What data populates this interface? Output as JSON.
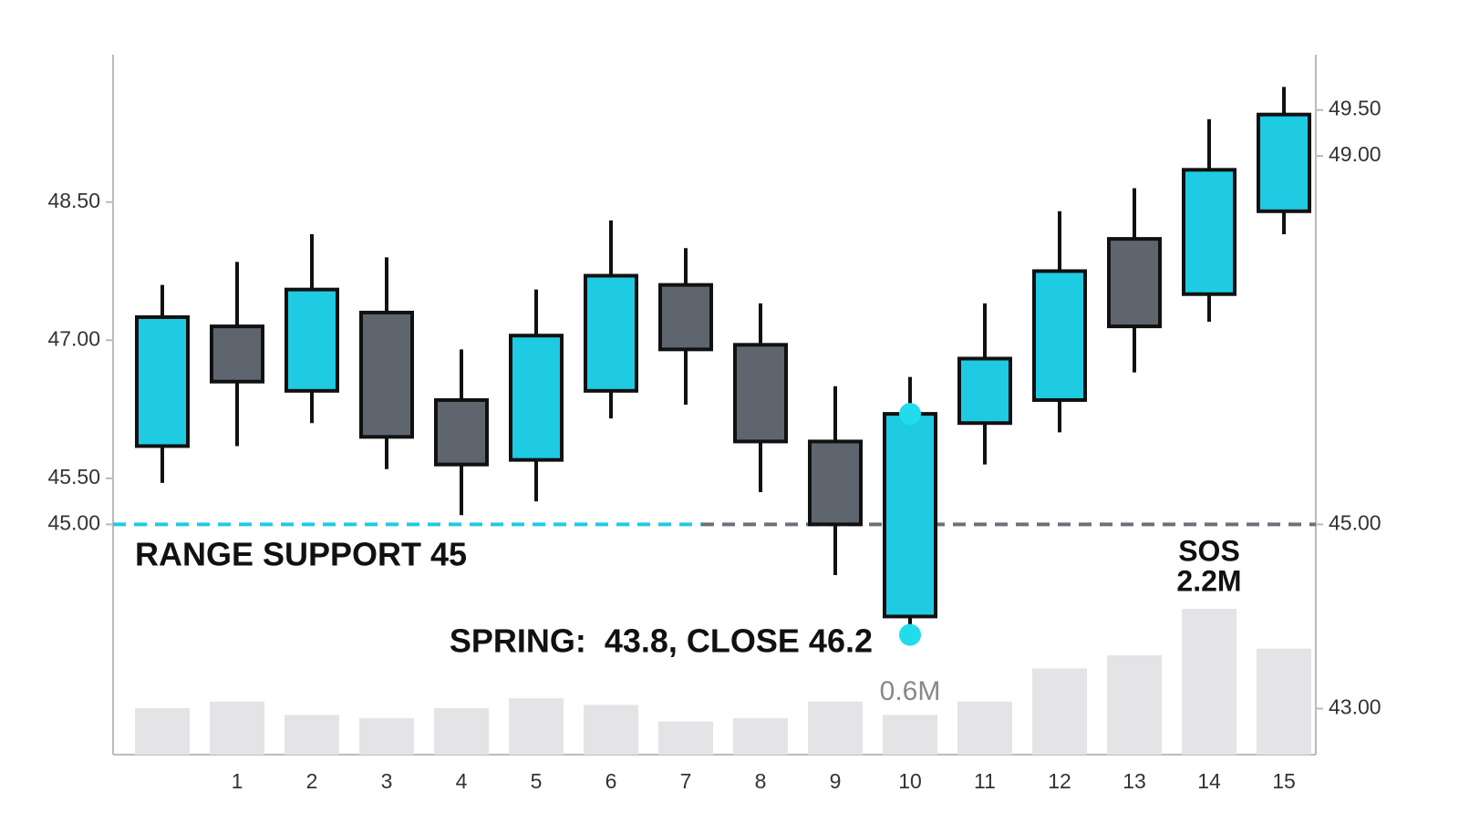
{
  "chart_data": {
    "type": "candlestick",
    "categories": [
      null,
      "1",
      "2",
      "3",
      "4",
      "5",
      "6",
      "7",
      "8",
      "9",
      "10",
      "11",
      "12",
      "13",
      "14",
      "15"
    ],
    "open": [
      45.85,
      47.15,
      46.45,
      47.3,
      46.35,
      45.7,
      46.45,
      47.6,
      46.95,
      45.9,
      44.0,
      46.1,
      46.35,
      48.1,
      47.5,
      48.4
    ],
    "high": [
      47.6,
      47.85,
      48.15,
      47.9,
      46.9,
      47.55,
      48.3,
      48.0,
      47.4,
      46.5,
      46.6,
      47.4,
      48.4,
      48.65,
      49.4,
      49.75
    ],
    "low": [
      45.45,
      45.85,
      46.1,
      45.6,
      45.1,
      45.25,
      46.15,
      46.3,
      45.35,
      44.45,
      43.8,
      45.65,
      46.0,
      46.65,
      47.2,
      48.15
    ],
    "close": [
      47.25,
      46.55,
      47.55,
      45.95,
      45.65,
      47.05,
      47.7,
      46.9,
      45.9,
      45.0,
      46.2,
      46.8,
      47.75,
      47.15,
      48.85,
      49.45
    ],
    "volume": [
      0.7,
      0.8,
      0.6,
      0.55,
      0.7,
      0.85,
      0.75,
      0.5,
      0.55,
      0.8,
      0.6,
      0.8,
      1.3,
      1.5,
      2.2,
      1.6
    ],
    "volume_labels": [
      null,
      null,
      null,
      null,
      null,
      null,
      null,
      null,
      null,
      null,
      "0.6M",
      null,
      null,
      null,
      "2.2M",
      null
    ],
    "up_color": "#1ecbe3",
    "down_color": "#5e656e",
    "volume_color": "#e4e4e6",
    "marker_color": "#22dcec",
    "ylim": [
      42.5,
      50.1
    ],
    "yticks": [
      {
        "value": 45,
        "label": "45.00"
      },
      {
        "value": 45.5,
        "label": "45.50"
      },
      {
        "value": 47,
        "label": "47.00"
      },
      {
        "value": 48.5,
        "label": "48.50"
      }
    ],
    "y2lim": [
      42.5,
      50.1
    ],
    "y2ticks": [
      {
        "value": 43,
        "label": "43.00"
      },
      {
        "value": 45,
        "label": "45.00"
      },
      {
        "value": 49,
        "label": "49.00"
      },
      {
        "value": 49.5,
        "label": "49.50"
      }
    ],
    "support_level": 45,
    "support_label": "RANGE SUPPORT 45",
    "spring_annotation": "SPRING:  43.8, CLOSE 46.2",
    "sos_annotation": "SOS"
  }
}
